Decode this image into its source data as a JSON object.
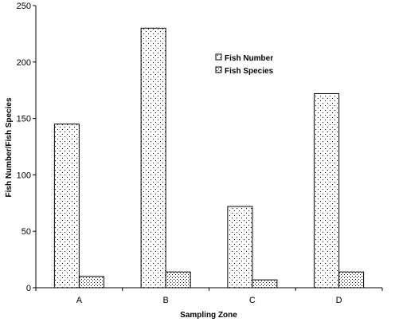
{
  "chart_data": {
    "type": "bar",
    "title": "",
    "xlabel": "Sampling Zone",
    "ylabel": "Fish Number/Fish Species",
    "categories": [
      "A",
      "B",
      "C",
      "D"
    ],
    "ylim": [
      0,
      250
    ],
    "yticks": [
      0,
      50,
      100,
      150,
      200,
      250
    ],
    "grid": false,
    "legend_position": "top-right",
    "series": [
      {
        "name": "Fish Number",
        "values": [
          145,
          230,
          72,
          172
        ],
        "pattern": "dotted-diamond"
      },
      {
        "name": "Fish Species",
        "values": [
          10,
          14,
          7,
          14
        ],
        "pattern": "dotted-grid"
      }
    ]
  }
}
